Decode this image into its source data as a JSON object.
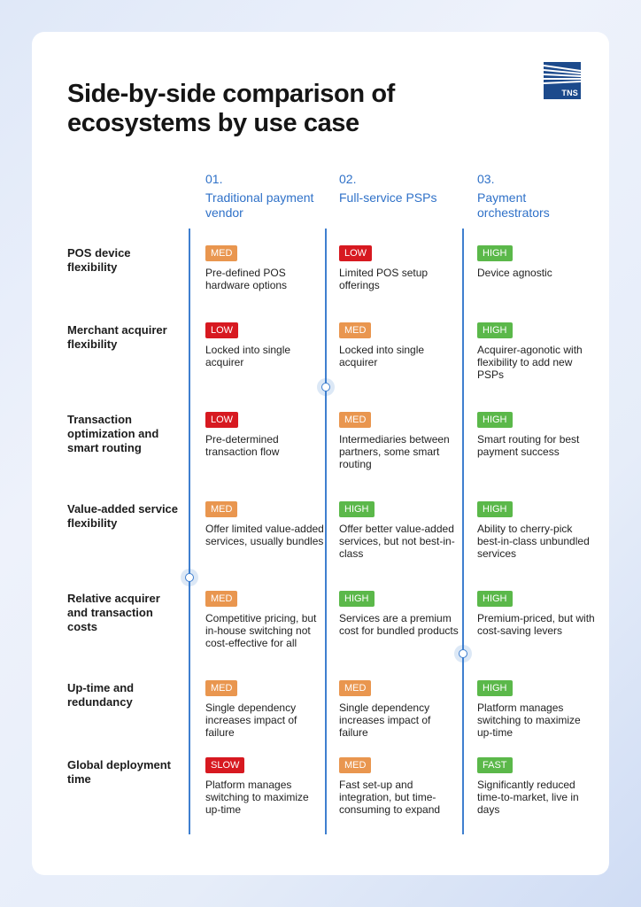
{
  "title": "Side-by-side comparison of ecosystems by use case",
  "logo": {
    "text": "TNS",
    "icon": "tns-logo-icon",
    "color": "#1c4a8c"
  },
  "colors": {
    "accent": "#2f71c8",
    "line": "#3f7fcf",
    "low": "#d71920",
    "med": "#e9964f",
    "high": "#5bb84a",
    "slow": "#d71920",
    "fast": "#5bb84a"
  },
  "columns": [
    {
      "number": "01.",
      "name": "Traditional payment vendor"
    },
    {
      "number": "02.",
      "name": "Full-service PSPs"
    },
    {
      "number": "03.",
      "name": "Payment orchestrators"
    }
  ],
  "rows": [
    {
      "label": "POS device flexibility",
      "cells": [
        {
          "rating": "MED",
          "text": "Pre-defined POS hardware options"
        },
        {
          "rating": "LOW",
          "text": "Limited POS setup offerings"
        },
        {
          "rating": "HIGH",
          "text": "Device agnostic"
        }
      ]
    },
    {
      "label": "Merchant acquirer flexibility",
      "cells": [
        {
          "rating": "LOW",
          "text": "Locked into single acquirer"
        },
        {
          "rating": "MED",
          "text": "Locked into single acquirer"
        },
        {
          "rating": "HIGH",
          "text": "Acquirer-agonotic with flexibility to add new PSPs"
        }
      ]
    },
    {
      "label": "Transaction optimization and smart routing",
      "cells": [
        {
          "rating": "LOW",
          "text": "Pre-determined transaction flow"
        },
        {
          "rating": "MED",
          "text": "Intermediaries between partners, some smart routing"
        },
        {
          "rating": "HIGH",
          "text": "Smart routing for best payment success"
        }
      ]
    },
    {
      "label": "Value-added service flexibility",
      "cells": [
        {
          "rating": "MED",
          "text": "Offer limited value-added services, usually bundles"
        },
        {
          "rating": "HIGH",
          "text": "Offer better value-added services, but not best-in-class"
        },
        {
          "rating": "HIGH",
          "text": "Ability to cherry-pick best-in-class unbundled services"
        }
      ]
    },
    {
      "label": "Relative acquirer and transaction costs",
      "cells": [
        {
          "rating": "MED",
          "text": "Competitive pricing, but in-house switching not cost-effective for all"
        },
        {
          "rating": "HIGH",
          "text": "Services are a premium cost for bundled products"
        },
        {
          "rating": "HIGH",
          "text": "Premium-priced, but with cost-saving levers"
        }
      ]
    },
    {
      "label": "Up-time and redundancy",
      "cells": [
        {
          "rating": "MED",
          "text": "Single dependency increases impact of failure"
        },
        {
          "rating": "MED",
          "text": "Single dependency increases impact of failure"
        },
        {
          "rating": "HIGH",
          "text": "Platform manages switching to maximize up-time"
        }
      ]
    },
    {
      "label": "Global deployment time",
      "cells": [
        {
          "rating": "SLOW",
          "text": "Platform manages switching to maximize up-time"
        },
        {
          "rating": "MED",
          "text": "Fast set-up and integration, but time-consuming to expand"
        },
        {
          "rating": "FAST",
          "text": "Significantly reduced time-to-market, live in days"
        }
      ]
    }
  ]
}
